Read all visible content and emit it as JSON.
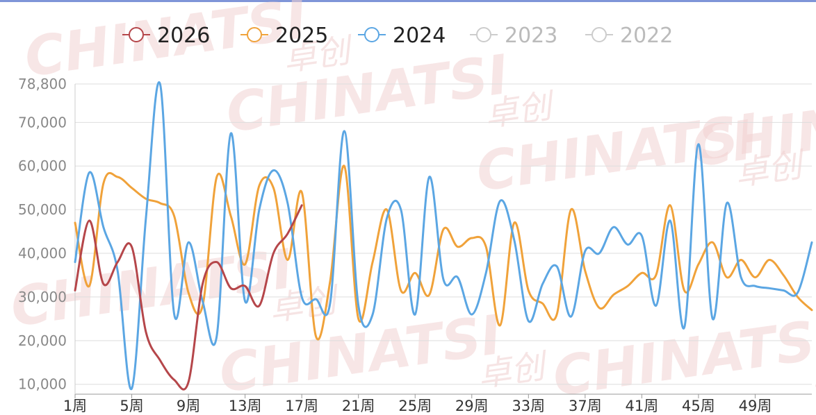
{
  "chart_data": {
    "type": "line",
    "title": "",
    "xlabel": "",
    "ylabel": "",
    "watermark": [
      "CHINATSI",
      "卓创"
    ],
    "ylim": [
      9000,
      78800
    ],
    "y_ticks": [
      78800,
      70000,
      60000,
      50000,
      40000,
      30000,
      20000,
      10000
    ],
    "y_tick_labels": [
      "78,800",
      "70,000",
      "60,000",
      "50,000",
      "40,000",
      "30,000",
      "20,000",
      "10,000"
    ],
    "x_tick_labels": [
      "1周",
      "5周",
      "9周",
      "13周",
      "17周",
      "21周",
      "25周",
      "29周",
      "33周",
      "37周",
      "41周",
      "45周",
      "49周"
    ],
    "grid": true,
    "legend_position": "top-center",
    "series": [
      {
        "name": "2026",
        "color": "#b5464a",
        "active": true,
        "x": [
          1,
          2,
          3,
          4,
          5,
          6,
          7,
          8,
          9,
          10,
          11,
          12,
          13,
          14,
          15,
          16,
          17
        ],
        "values": [
          31500,
          47500,
          33000,
          38000,
          41500,
          22000,
          15500,
          11000,
          10500,
          33000,
          38000,
          32000,
          32500,
          28000,
          40000,
          44500,
          51000
        ]
      },
      {
        "name": "2025",
        "color": "#f0a23a",
        "active": true,
        "x": [
          1,
          2,
          3,
          4,
          5,
          6,
          7,
          8,
          9,
          10,
          11,
          12,
          13,
          14,
          15,
          16,
          17,
          18,
          19,
          20,
          21,
          22,
          23,
          24,
          25,
          26,
          27,
          28,
          29,
          30,
          31,
          32,
          33,
          34,
          35,
          36,
          37,
          38,
          39,
          40,
          41,
          42,
          43,
          44,
          45,
          46,
          47,
          48,
          49,
          50,
          51,
          52,
          53
        ],
        "values": [
          47000,
          32500,
          56000,
          57500,
          55000,
          52500,
          51500,
          48500,
          31000,
          28000,
          57500,
          48500,
          37500,
          55500,
          55000,
          38500,
          54000,
          21000,
          33500,
          60000,
          25000,
          38000,
          50000,
          31500,
          35500,
          30500,
          45500,
          41500,
          43500,
          41500,
          23500,
          47000,
          31500,
          28500,
          26000,
          50000,
          36000,
          27500,
          30500,
          32500,
          35500,
          35000,
          51000,
          31500,
          37500,
          42500,
          34500,
          38500,
          34500,
          38500,
          35000,
          30000,
          27000
        ]
      },
      {
        "name": "2024",
        "color": "#5ba6e3",
        "active": true,
        "x": [
          1,
          2,
          3,
          4,
          5,
          6,
          7,
          8,
          9,
          10,
          11,
          12,
          13,
          14,
          15,
          16,
          17,
          18,
          19,
          20,
          21,
          22,
          23,
          24,
          25,
          26,
          27,
          28,
          29,
          30,
          31,
          32,
          33,
          34,
          35,
          36,
          37,
          38,
          39,
          40,
          41,
          42,
          43,
          44,
          45,
          46,
          47,
          48,
          49,
          50,
          51,
          52,
          53
        ],
        "values": [
          38000,
          58500,
          46000,
          36000,
          9000,
          48000,
          78800,
          26000,
          42500,
          29000,
          21000,
          67500,
          29000,
          50000,
          59000,
          51500,
          30000,
          29500,
          28500,
          68000,
          28000,
          26000,
          48000,
          50000,
          26000,
          57500,
          34000,
          34500,
          26000,
          35500,
          52000,
          43000,
          24500,
          33000,
          37000,
          25500,
          40500,
          40000,
          46000,
          42000,
          44000,
          28000,
          47500,
          23000,
          65000,
          25000,
          51500,
          34500,
          32500,
          32000,
          31500,
          31000,
          42500
        ]
      },
      {
        "name": "2023",
        "color": "#cccccc",
        "active": false,
        "x": [],
        "values": []
      },
      {
        "name": "2022",
        "color": "#cccccc",
        "active": false,
        "x": [],
        "values": []
      }
    ]
  }
}
